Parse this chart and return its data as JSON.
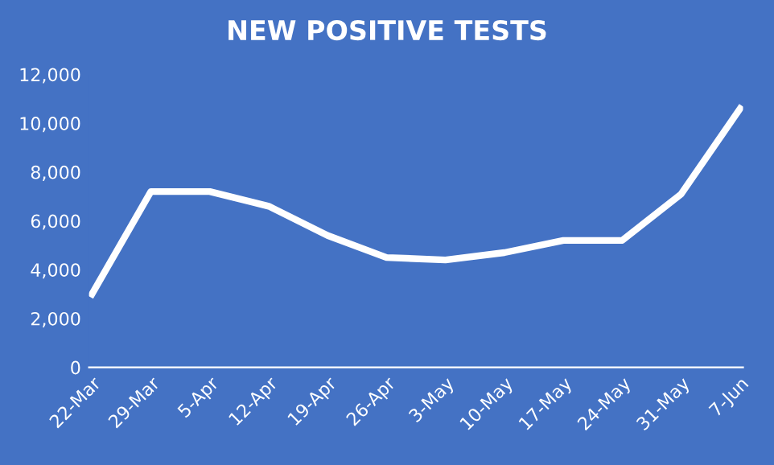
{
  "chart_data": {
    "type": "line",
    "title": "NEW POSITIVE TESTS",
    "categories": [
      "22-Mar",
      "29-Mar",
      "5-Apr",
      "12-Apr",
      "19-Apr",
      "26-Apr",
      "3-May",
      "10-May",
      "17-May",
      "24-May",
      "31-May",
      "7-Jun"
    ],
    "series": [
      {
        "color": "#ffffff",
        "values": [
          3000,
          7200,
          7200,
          6600,
          5400,
          4500,
          4400,
          4700,
          5200,
          5200,
          7100,
          10600
        ]
      }
    ],
    "ylim": [
      0,
      12000
    ],
    "yticks": [
      {
        "value": 0,
        "label": "0"
      },
      {
        "value": 2000,
        "label": "2,000"
      },
      {
        "value": 4000,
        "label": "4,000"
      },
      {
        "value": 6000,
        "label": "6,000"
      },
      {
        "value": 8000,
        "label": "8,000"
      },
      {
        "value": 10000,
        "label": "10,000"
      },
      {
        "value": 12000,
        "label": "12,000"
      }
    ],
    "grid": false,
    "marker": "none",
    "line_style": "solid"
  }
}
